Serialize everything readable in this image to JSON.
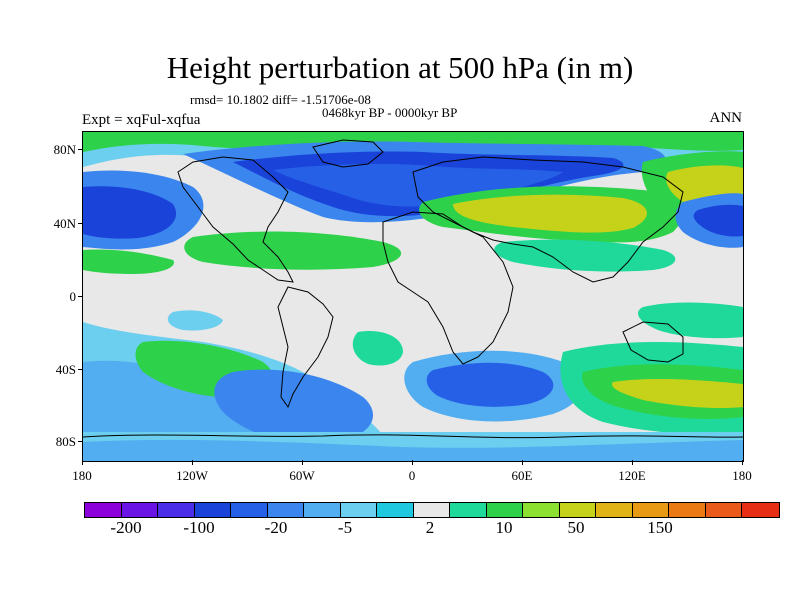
{
  "title": "Height perturbation at 500 hPa (in m)",
  "stats": "rmsd= 10.1802 diff= -1.51706e-08",
  "period": "0468kyr BP - 0000kyr BP",
  "experiment": "Expt = xqFul-xqfua",
  "season": "ANN",
  "map": {
    "lat_labels": [
      "80N",
      "40N",
      "0",
      "40S",
      "80S"
    ],
    "lon_labels": [
      "180",
      "120W",
      "60W",
      "0",
      "60E",
      "120E",
      "180"
    ]
  },
  "colorbar": {
    "colors": [
      "#8c00d9",
      "#6a14e6",
      "#4b2ee8",
      "#1a43d9",
      "#2660e6",
      "#3a86ee",
      "#52aef0",
      "#6ccfef",
      "#1ec8df",
      "#e8e8e8",
      "#1ed99a",
      "#2ed14a",
      "#8ce030",
      "#c6d21a",
      "#e0b414",
      "#e89a14",
      "#ec7a14",
      "#ea5a1a",
      "#e62e14"
    ],
    "labels": [
      "-200",
      "-100",
      "-20",
      "-5",
      "2",
      "10",
      "50",
      "150"
    ]
  }
}
